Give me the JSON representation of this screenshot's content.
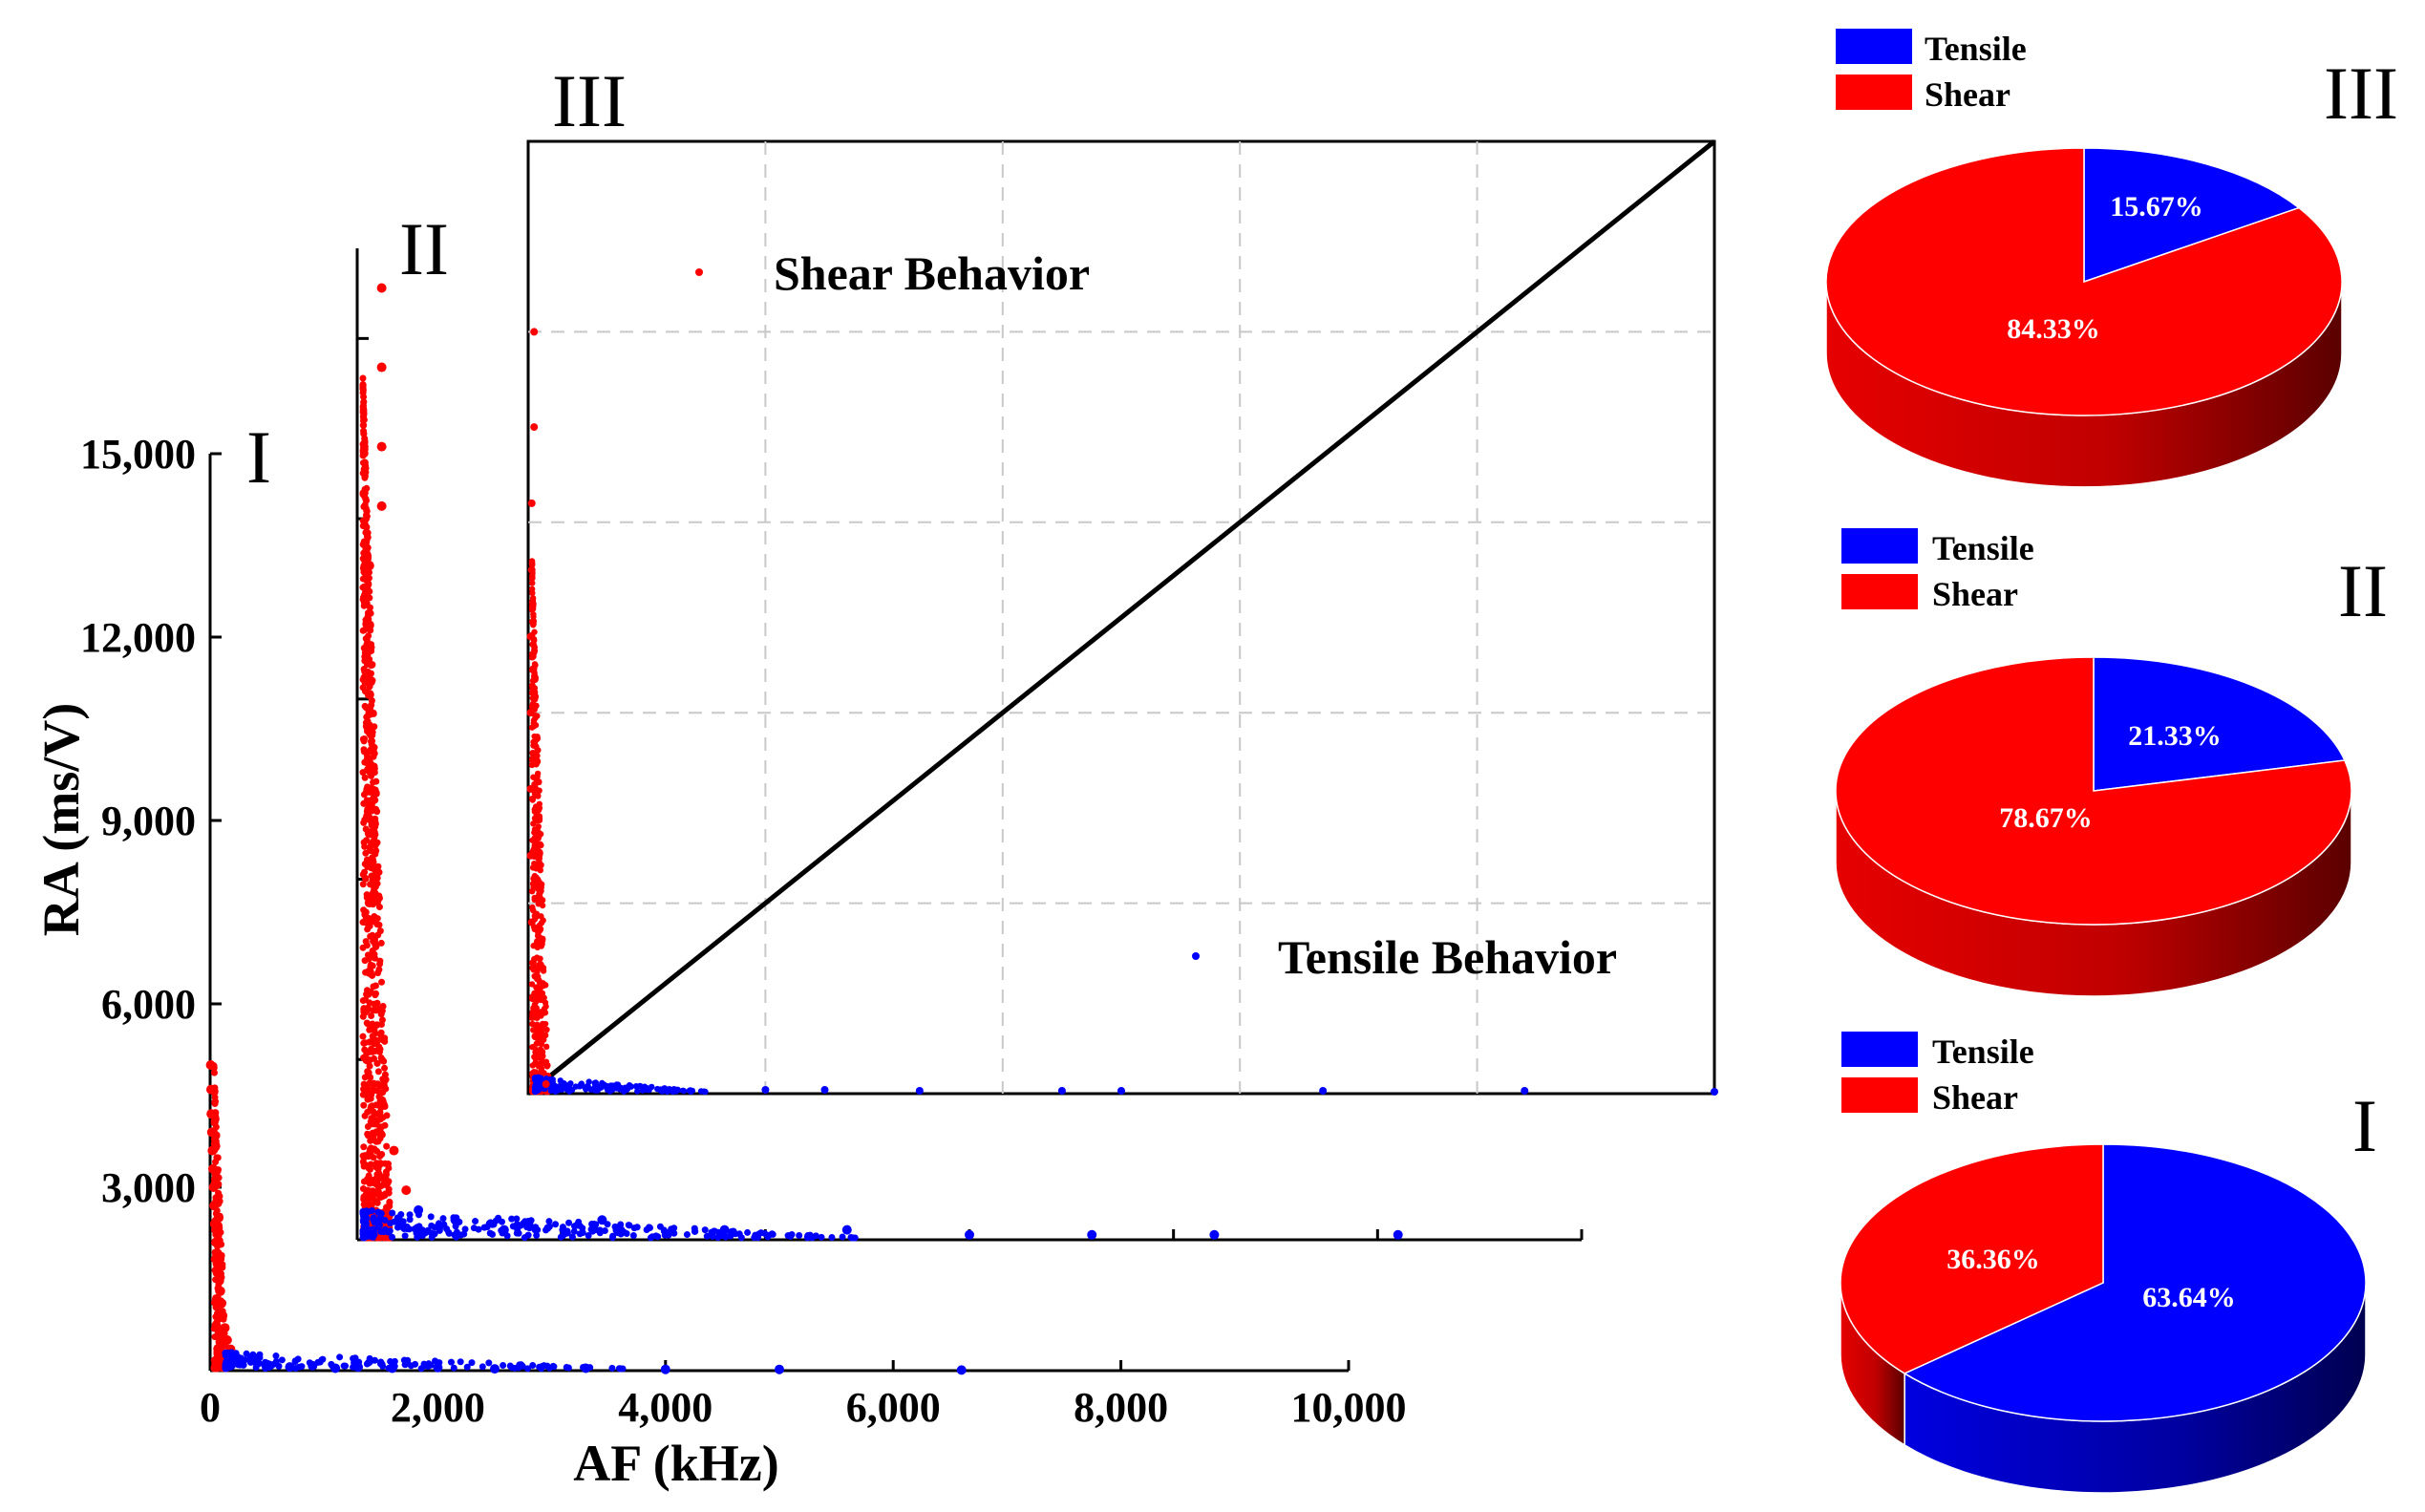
{
  "colors": {
    "tensile": "#0000ff",
    "shear": "#ff0000",
    "axis": "#000000",
    "grid": "#c8c8c8"
  },
  "chart_data": [
    {
      "type": "scatter",
      "panel": "I",
      "xlabel": "AF (kHz)",
      "ylabel": "RA (ms/V)",
      "xlim": [
        0,
        10000
      ],
      "ylim": [
        0,
        15000
      ],
      "xticks": [
        0,
        2000,
        4000,
        6000,
        8000,
        10000
      ],
      "xtick_labels": [
        "0",
        "2,000",
        "4,000",
        "6,000",
        "8,000",
        "10,000"
      ],
      "yticks": [
        3000,
        6000,
        9000,
        12000,
        15000
      ],
      "ytick_labels": [
        "3,000",
        "6,000",
        "9,000",
        "12,000",
        "15,000"
      ],
      "series": [
        {
          "name": "Shear",
          "color": "#ff0000",
          "points": [
            [
              5,
              5000
            ],
            [
              8,
              4600
            ],
            [
              10,
              4200
            ],
            [
              15,
              3900
            ],
            [
              20,
              3600
            ],
            [
              25,
              3300
            ],
            [
              30,
              3000
            ],
            [
              35,
              2700
            ],
            [
              40,
              2400
            ],
            [
              50,
              2100
            ],
            [
              60,
              1900
            ],
            [
              70,
              1700
            ],
            [
              80,
              1500
            ],
            [
              90,
              1300
            ],
            [
              100,
              1100
            ],
            [
              110,
              900
            ],
            [
              130,
              700
            ],
            [
              150,
              500
            ],
            [
              180,
              350
            ],
            [
              200,
              250
            ]
          ]
        },
        {
          "name": "Tensile",
          "color": "#0000ff",
          "points": [
            [
              150,
              150
            ],
            [
              250,
              120
            ],
            [
              400,
              200
            ],
            [
              500,
              100
            ],
            [
              700,
              60
            ],
            [
              900,
              80
            ],
            [
              1100,
              40
            ],
            [
              1300,
              60
            ],
            [
              1600,
              40
            ],
            [
              2000,
              50
            ],
            [
              2500,
              30
            ],
            [
              3300,
              40
            ],
            [
              4000,
              20
            ],
            [
              5000,
              20
            ],
            [
              6600,
              10
            ]
          ]
        }
      ]
    },
    {
      "type": "scatter",
      "panel": "II",
      "series": [
        {
          "name": "Shear",
          "color": "#ff0000",
          "points": [
            [
              0.02,
              0.96
            ],
            [
              0.02,
              0.88
            ],
            [
              0.02,
              0.8
            ],
            [
              0.02,
              0.74
            ],
            [
              0.01,
              0.68
            ],
            [
              0.01,
              0.62
            ],
            [
              0.01,
              0.55
            ],
            [
              0.01,
              0.48
            ],
            [
              0.01,
              0.41
            ],
            [
              0.01,
              0.34
            ],
            [
              0.01,
              0.27
            ],
            [
              0.015,
              0.2
            ],
            [
              0.02,
              0.14
            ],
            [
              0.03,
              0.09
            ],
            [
              0.04,
              0.05
            ]
          ]
        },
        {
          "name": "Tensile",
          "color": "#0000ff",
          "points": [
            [
              0.05,
              0.03
            ],
            [
              0.08,
              0.02
            ],
            [
              0.12,
              0.01
            ],
            [
              0.2,
              0.02
            ],
            [
              0.3,
              0.01
            ],
            [
              0.4,
              0.01
            ],
            [
              0.5,
              0.005
            ],
            [
              0.6,
              0.005
            ],
            [
              0.7,
              0.005
            ],
            [
              0.85,
              0.005
            ]
          ]
        }
      ]
    },
    {
      "type": "scatter",
      "panel": "III",
      "annotations": [
        "Shear Behavior",
        "Tensile Behavior"
      ],
      "divider": "diagonal RA/AF line",
      "series": [
        {
          "name": "Shear",
          "color": "#ff0000",
          "points": [
            [
              0.005,
              0.8
            ],
            [
              0.005,
              0.7
            ],
            [
              0.003,
              0.62
            ],
            [
              0.003,
              0.55
            ],
            [
              0.002,
              0.48
            ],
            [
              0.002,
              0.4
            ],
            [
              0.002,
              0.32
            ],
            [
              0.002,
              0.25
            ],
            [
              0.003,
              0.18
            ],
            [
              0.004,
              0.1
            ],
            [
              0.006,
              0.06
            ],
            [
              0.01,
              0.03
            ],
            [
              0.015,
              0.01
            ]
          ]
        },
        {
          "name": "Tensile",
          "color": "#0000ff",
          "points": [
            [
              0.03,
              0.01
            ],
            [
              0.05,
              0.007
            ],
            [
              0.1,
              0.005
            ],
            [
              0.2,
              0.004
            ],
            [
              0.25,
              0.004
            ],
            [
              0.33,
              0.003
            ],
            [
              0.45,
              0.003
            ],
            [
              0.5,
              0.003
            ],
            [
              0.67,
              0.003
            ],
            [
              0.84,
              0.003
            ],
            [
              1.0,
              0.002
            ]
          ]
        }
      ]
    },
    {
      "type": "pie",
      "panel": "III",
      "labels": [
        "Tensile",
        "Shear"
      ],
      "values": [
        15.67,
        84.33
      ],
      "value_labels": [
        "15.67%",
        "84.33%"
      ]
    },
    {
      "type": "pie",
      "panel": "II",
      "labels": [
        "Tensile",
        "Shear"
      ],
      "values": [
        21.33,
        78.67
      ],
      "value_labels": [
        "21.33%",
        "78.67%"
      ]
    },
    {
      "type": "pie",
      "panel": "I",
      "labels": [
        "Tensile",
        "Shear"
      ],
      "values": [
        63.64,
        36.36
      ],
      "value_labels": [
        "63.64%",
        "36.36%"
      ]
    }
  ],
  "labels": {
    "panel_i": "I",
    "panel_ii": "II",
    "panel_iii": "III",
    "shear_behavior": "Shear Behavior",
    "tensile_behavior": "Tensile Behavior",
    "legend_tensile": "Tensile",
    "legend_shear": "Shear"
  }
}
